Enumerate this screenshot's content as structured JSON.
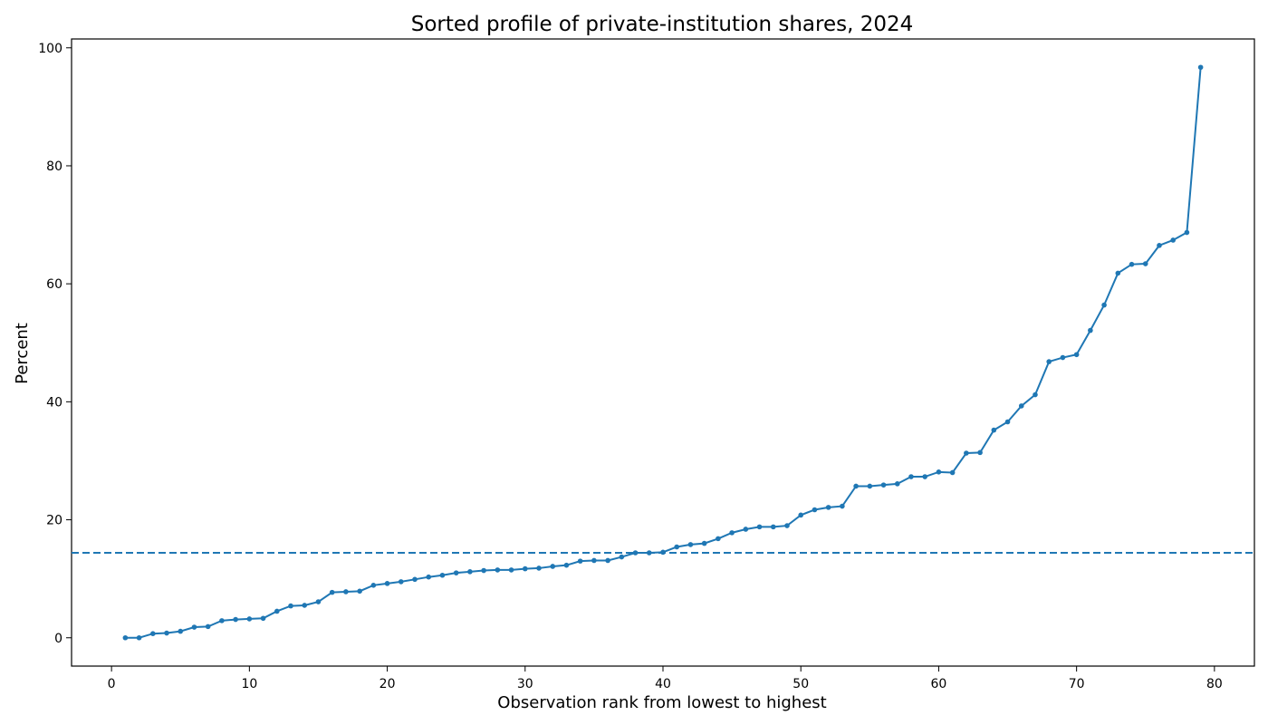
{
  "chart_data": {
    "type": "line",
    "title": "Sorted profile of private-institution shares, 2024",
    "xlabel": "Observation rank from lowest to highest",
    "ylabel": "Percent",
    "xlim": [
      -2.9,
      82.9
    ],
    "ylim": [
      -4.8,
      101.5
    ],
    "xticks": [
      0,
      10,
      20,
      30,
      40,
      50,
      60,
      70,
      80
    ],
    "yticks": [
      0,
      20,
      40,
      60,
      80,
      100
    ],
    "grid": false,
    "colors": {
      "series": "#1f77b4",
      "reference": "#1f77b4"
    },
    "reference_line": {
      "y": 14.4,
      "style": "dashed"
    },
    "series": [
      {
        "x": [
          1,
          2,
          3,
          4,
          5,
          6,
          7,
          8,
          9,
          10,
          11,
          12,
          13,
          14,
          15,
          16,
          17,
          18,
          19,
          20,
          21,
          22,
          23,
          24,
          25,
          26,
          27,
          28,
          29,
          30,
          31,
          32,
          33,
          34,
          35,
          36,
          37,
          38,
          39,
          40,
          41,
          42,
          43,
          44,
          45,
          46,
          47,
          48,
          49,
          50,
          51,
          52,
          53,
          54,
          55,
          56,
          57,
          58,
          59,
          60,
          61,
          62,
          63,
          64,
          65,
          66,
          67,
          68,
          69,
          70,
          71,
          72,
          73,
          74,
          75,
          76,
          77,
          78,
          79
        ],
        "y": [
          0.0,
          0.0,
          0.7,
          0.8,
          1.1,
          1.8,
          1.9,
          2.9,
          3.1,
          3.2,
          3.3,
          4.5,
          5.4,
          5.5,
          6.1,
          7.7,
          7.8,
          7.9,
          8.9,
          9.2,
          9.5,
          9.9,
          10.3,
          10.6,
          11.0,
          11.2,
          11.4,
          11.5,
          11.5,
          11.7,
          11.8,
          12.1,
          12.3,
          13.0,
          13.1,
          13.1,
          13.7,
          14.4,
          14.4,
          14.5,
          15.4,
          15.8,
          16.0,
          16.8,
          17.8,
          18.4,
          18.8,
          18.8,
          19.0,
          20.8,
          21.7,
          22.1,
          22.3,
          25.7,
          25.7,
          25.9,
          26.1,
          27.3,
          27.3,
          28.1,
          28.0,
          31.3,
          31.4,
          35.2,
          36.6,
          39.3,
          41.2,
          46.8,
          47.5,
          48.0,
          52.1,
          56.4,
          61.8,
          63.3,
          63.4,
          66.5,
          67.4,
          68.7,
          96.7
        ]
      }
    ]
  }
}
